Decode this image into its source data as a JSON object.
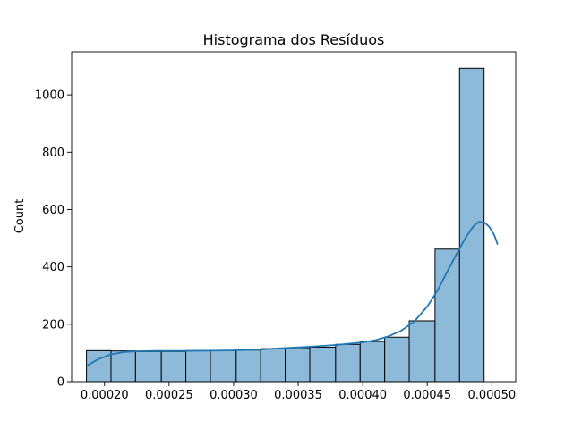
{
  "chart_data": {
    "type": "bar",
    "title": "Histograma dos Resíduos",
    "xlabel": "",
    "ylabel": "Count",
    "bar_color": "#8ebad9",
    "edge_color": "#000000",
    "kde_color": "#1f77b4",
    "xlim": [
      0.0001745,
      0.0005185
    ],
    "ylim": [
      0,
      1150
    ],
    "x_ticks": [
      0.0002,
      0.00025,
      0.0003,
      0.00035,
      0.0004,
      0.00045,
      0.0005
    ],
    "x_tick_labels": [
      "0.00020",
      "0.00025",
      "0.00030",
      "0.00035",
      "0.00040",
      "0.00045",
      "0.00050"
    ],
    "y_ticks": [
      0,
      200,
      400,
      600,
      800,
      1000
    ],
    "y_tick_labels": [
      "0",
      "200",
      "400",
      "600",
      "800",
      "1000"
    ],
    "bins": {
      "edges": [
        0.000186,
        0.000205,
        0.000224,
        0.000244,
        0.000263,
        0.000282,
        0.000302,
        0.000321,
        0.00034,
        0.000359,
        0.000379,
        0.000398,
        0.000417,
        0.000436,
        0.000456,
        0.000475,
        0.000494,
        0.0005135
      ],
      "counts": [
        108,
        107,
        105,
        105,
        108,
        108,
        110,
        115,
        118,
        120,
        130,
        140,
        155,
        212,
        462,
        1093,
        0
      ]
    },
    "kde": {
      "x": [
        0.000186,
        0.000195,
        0.000205,
        0.000215,
        0.000225,
        0.00024,
        0.00026,
        0.00028,
        0.0003,
        0.00032,
        0.00034,
        0.00036,
        0.00038,
        0.0004,
        0.00041,
        0.00042,
        0.00043,
        0.00044,
        0.00045,
        0.000458,
        0.000466,
        0.000474,
        0.00048,
        0.000486,
        0.00049,
        0.000494,
        0.000498,
        0.000502,
        0.0005045
      ],
      "y": [
        55,
        78,
        95,
        103,
        106,
        107,
        107,
        108,
        109,
        112,
        117,
        122,
        128,
        137,
        145,
        158,
        178,
        210,
        262,
        318,
        388,
        456,
        504,
        543,
        557,
        556,
        540,
        510,
        478
      ]
    }
  }
}
